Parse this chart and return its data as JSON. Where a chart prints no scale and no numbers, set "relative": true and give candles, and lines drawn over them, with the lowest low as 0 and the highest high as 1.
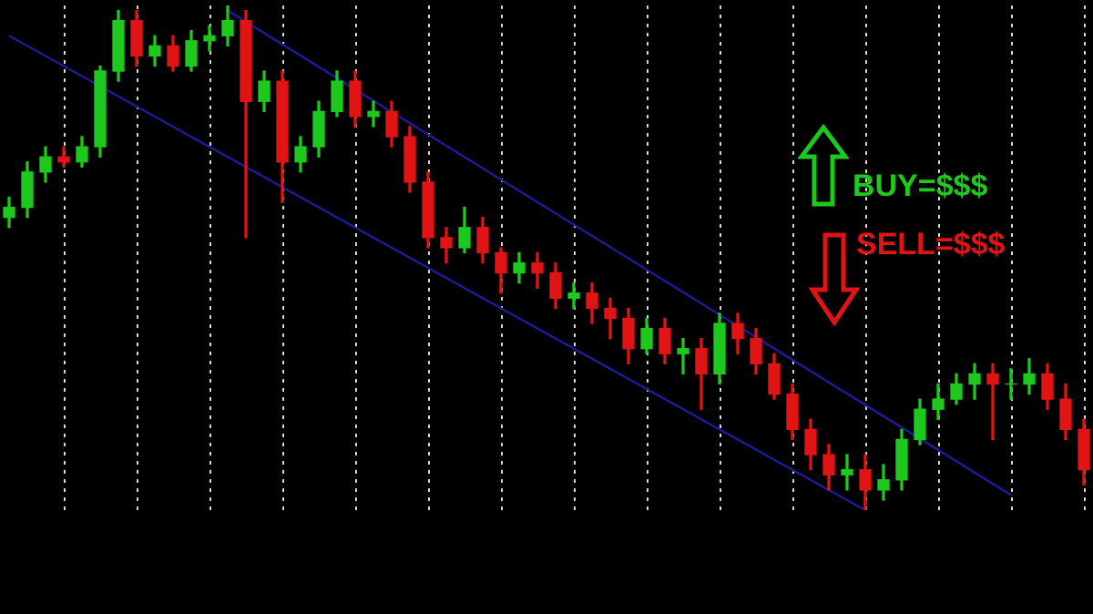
{
  "chart_data": {
    "type": "candlestick",
    "relative": true,
    "categories": [
      null,
      null,
      null,
      null,
      null,
      null,
      null,
      null,
      null,
      null,
      null,
      null,
      null,
      null,
      null,
      null,
      null,
      null,
      null,
      null,
      null,
      null,
      null,
      null,
      null,
      null,
      null,
      null,
      null,
      null,
      null,
      null,
      null,
      null,
      null,
      null,
      null,
      null,
      null,
      null,
      null,
      null,
      null,
      null,
      null,
      null,
      null,
      null,
      null,
      null,
      null,
      null,
      null,
      null,
      null,
      null,
      null,
      null,
      null,
      null
    ],
    "ohlc": [
      [
        0.58,
        0.62,
        0.56,
        0.6
      ],
      [
        0.6,
        0.69,
        0.58,
        0.67
      ],
      [
        0.67,
        0.72,
        0.65,
        0.7
      ],
      [
        0.7,
        0.72,
        0.68,
        0.69
      ],
      [
        0.69,
        0.74,
        0.68,
        0.72
      ],
      [
        0.72,
        0.88,
        0.7,
        0.87
      ],
      [
        0.87,
        0.99,
        0.85,
        0.97
      ],
      [
        0.97,
        0.99,
        0.88,
        0.9
      ],
      [
        0.9,
        0.94,
        0.88,
        0.92
      ],
      [
        0.92,
        0.94,
        0.87,
        0.88
      ],
      [
        0.88,
        0.95,
        0.87,
        0.93
      ],
      [
        0.93,
        0.96,
        0.91,
        0.94
      ],
      [
        0.94,
        1.0,
        0.92,
        0.97
      ],
      [
        0.97,
        0.99,
        0.54,
        0.81
      ],
      [
        0.81,
        0.87,
        0.79,
        0.85
      ],
      [
        0.85,
        0.87,
        0.61,
        0.69
      ],
      [
        0.69,
        0.74,
        0.67,
        0.72
      ],
      [
        0.72,
        0.81,
        0.7,
        0.79
      ],
      [
        0.79,
        0.87,
        0.78,
        0.85
      ],
      [
        0.85,
        0.87,
        0.76,
        0.78
      ],
      [
        0.78,
        0.81,
        0.76,
        0.79
      ],
      [
        0.79,
        0.81,
        0.72,
        0.74
      ],
      [
        0.74,
        0.76,
        0.63,
        0.65
      ],
      [
        0.65,
        0.67,
        0.52,
        0.54
      ],
      [
        0.54,
        0.56,
        0.49,
        0.52
      ],
      [
        0.52,
        0.6,
        0.51,
        0.56
      ],
      [
        0.56,
        0.58,
        0.49,
        0.51
      ],
      [
        0.51,
        0.52,
        0.43,
        0.47
      ],
      [
        0.47,
        0.51,
        0.45,
        0.49
      ],
      [
        0.49,
        0.51,
        0.44,
        0.47
      ],
      [
        0.47,
        0.49,
        0.4,
        0.42
      ],
      [
        0.42,
        0.45,
        0.4,
        0.43
      ],
      [
        0.43,
        0.45,
        0.37,
        0.4
      ],
      [
        0.4,
        0.42,
        0.34,
        0.38
      ],
      [
        0.38,
        0.4,
        0.29,
        0.32
      ],
      [
        0.32,
        0.38,
        0.31,
        0.36
      ],
      [
        0.36,
        0.38,
        0.29,
        0.31
      ],
      [
        0.31,
        0.34,
        0.27,
        0.32
      ],
      [
        0.32,
        0.34,
        0.2,
        0.27
      ],
      [
        0.27,
        0.39,
        0.25,
        0.37
      ],
      [
        0.37,
        0.39,
        0.31,
        0.34
      ],
      [
        0.34,
        0.36,
        0.27,
        0.29
      ],
      [
        0.29,
        0.31,
        0.22,
        0.23
      ],
      [
        0.23,
        0.25,
        0.14,
        0.16
      ],
      [
        0.16,
        0.18,
        0.08,
        0.11
      ],
      [
        0.11,
        0.13,
        0.04,
        0.07
      ],
      [
        0.07,
        0.11,
        0.04,
        0.08
      ],
      [
        0.08,
        0.11,
        0.0,
        0.04
      ],
      [
        0.04,
        0.09,
        0.02,
        0.06
      ],
      [
        0.06,
        0.16,
        0.04,
        0.14
      ],
      [
        0.14,
        0.22,
        0.13,
        0.2
      ],
      [
        0.2,
        0.25,
        0.18,
        0.22
      ],
      [
        0.22,
        0.27,
        0.21,
        0.25
      ],
      [
        0.25,
        0.29,
        0.22,
        0.27
      ],
      [
        0.27,
        0.29,
        0.14,
        0.25
      ],
      [
        0.25,
        0.28,
        0.22,
        0.25
      ],
      [
        0.25,
        0.3,
        0.23,
        0.27
      ],
      [
        0.27,
        0.29,
        0.2,
        0.22
      ],
      [
        0.22,
        0.25,
        0.14,
        0.16
      ],
      [
        0.16,
        0.18,
        0.05,
        0.08
      ]
    ],
    "series": [
      {
        "type": "line",
        "color": "#1c1c9a",
        "values": [
          null,
          null,
          null,
          null,
          null,
          null,
          null,
          null,
          null,
          null,
          null,
          null,
          0.99,
          null,
          null,
          null,
          null,
          null,
          null,
          null,
          null,
          null,
          null,
          null,
          null,
          null,
          null,
          null,
          null,
          null,
          null,
          null,
          null,
          null,
          null,
          null,
          null,
          null,
          null,
          null,
          null,
          null,
          null,
          null,
          null,
          null,
          null,
          null,
          null,
          null,
          null,
          null,
          null,
          null,
          null,
          0.03,
          null,
          null,
          null,
          null
        ]
      },
      {
        "type": "line",
        "color": "#1c1c9a",
        "values": [
          0.94,
          null,
          null,
          null,
          null,
          null,
          null,
          null,
          null,
          null,
          null,
          null,
          null,
          null,
          null,
          null,
          null,
          null,
          null,
          null,
          null,
          null,
          null,
          null,
          null,
          null,
          null,
          null,
          null,
          null,
          null,
          null,
          null,
          null,
          null,
          null,
          null,
          null,
          null,
          null,
          null,
          null,
          null,
          null,
          null,
          null,
          null,
          0.0,
          null,
          null,
          null,
          null,
          null,
          null,
          null,
          null,
          null,
          null,
          null,
          null
        ]
      }
    ],
    "annotations": [
      "BUY=$$$",
      "SELL=$$$"
    ],
    "grid": "x"
  }
}
